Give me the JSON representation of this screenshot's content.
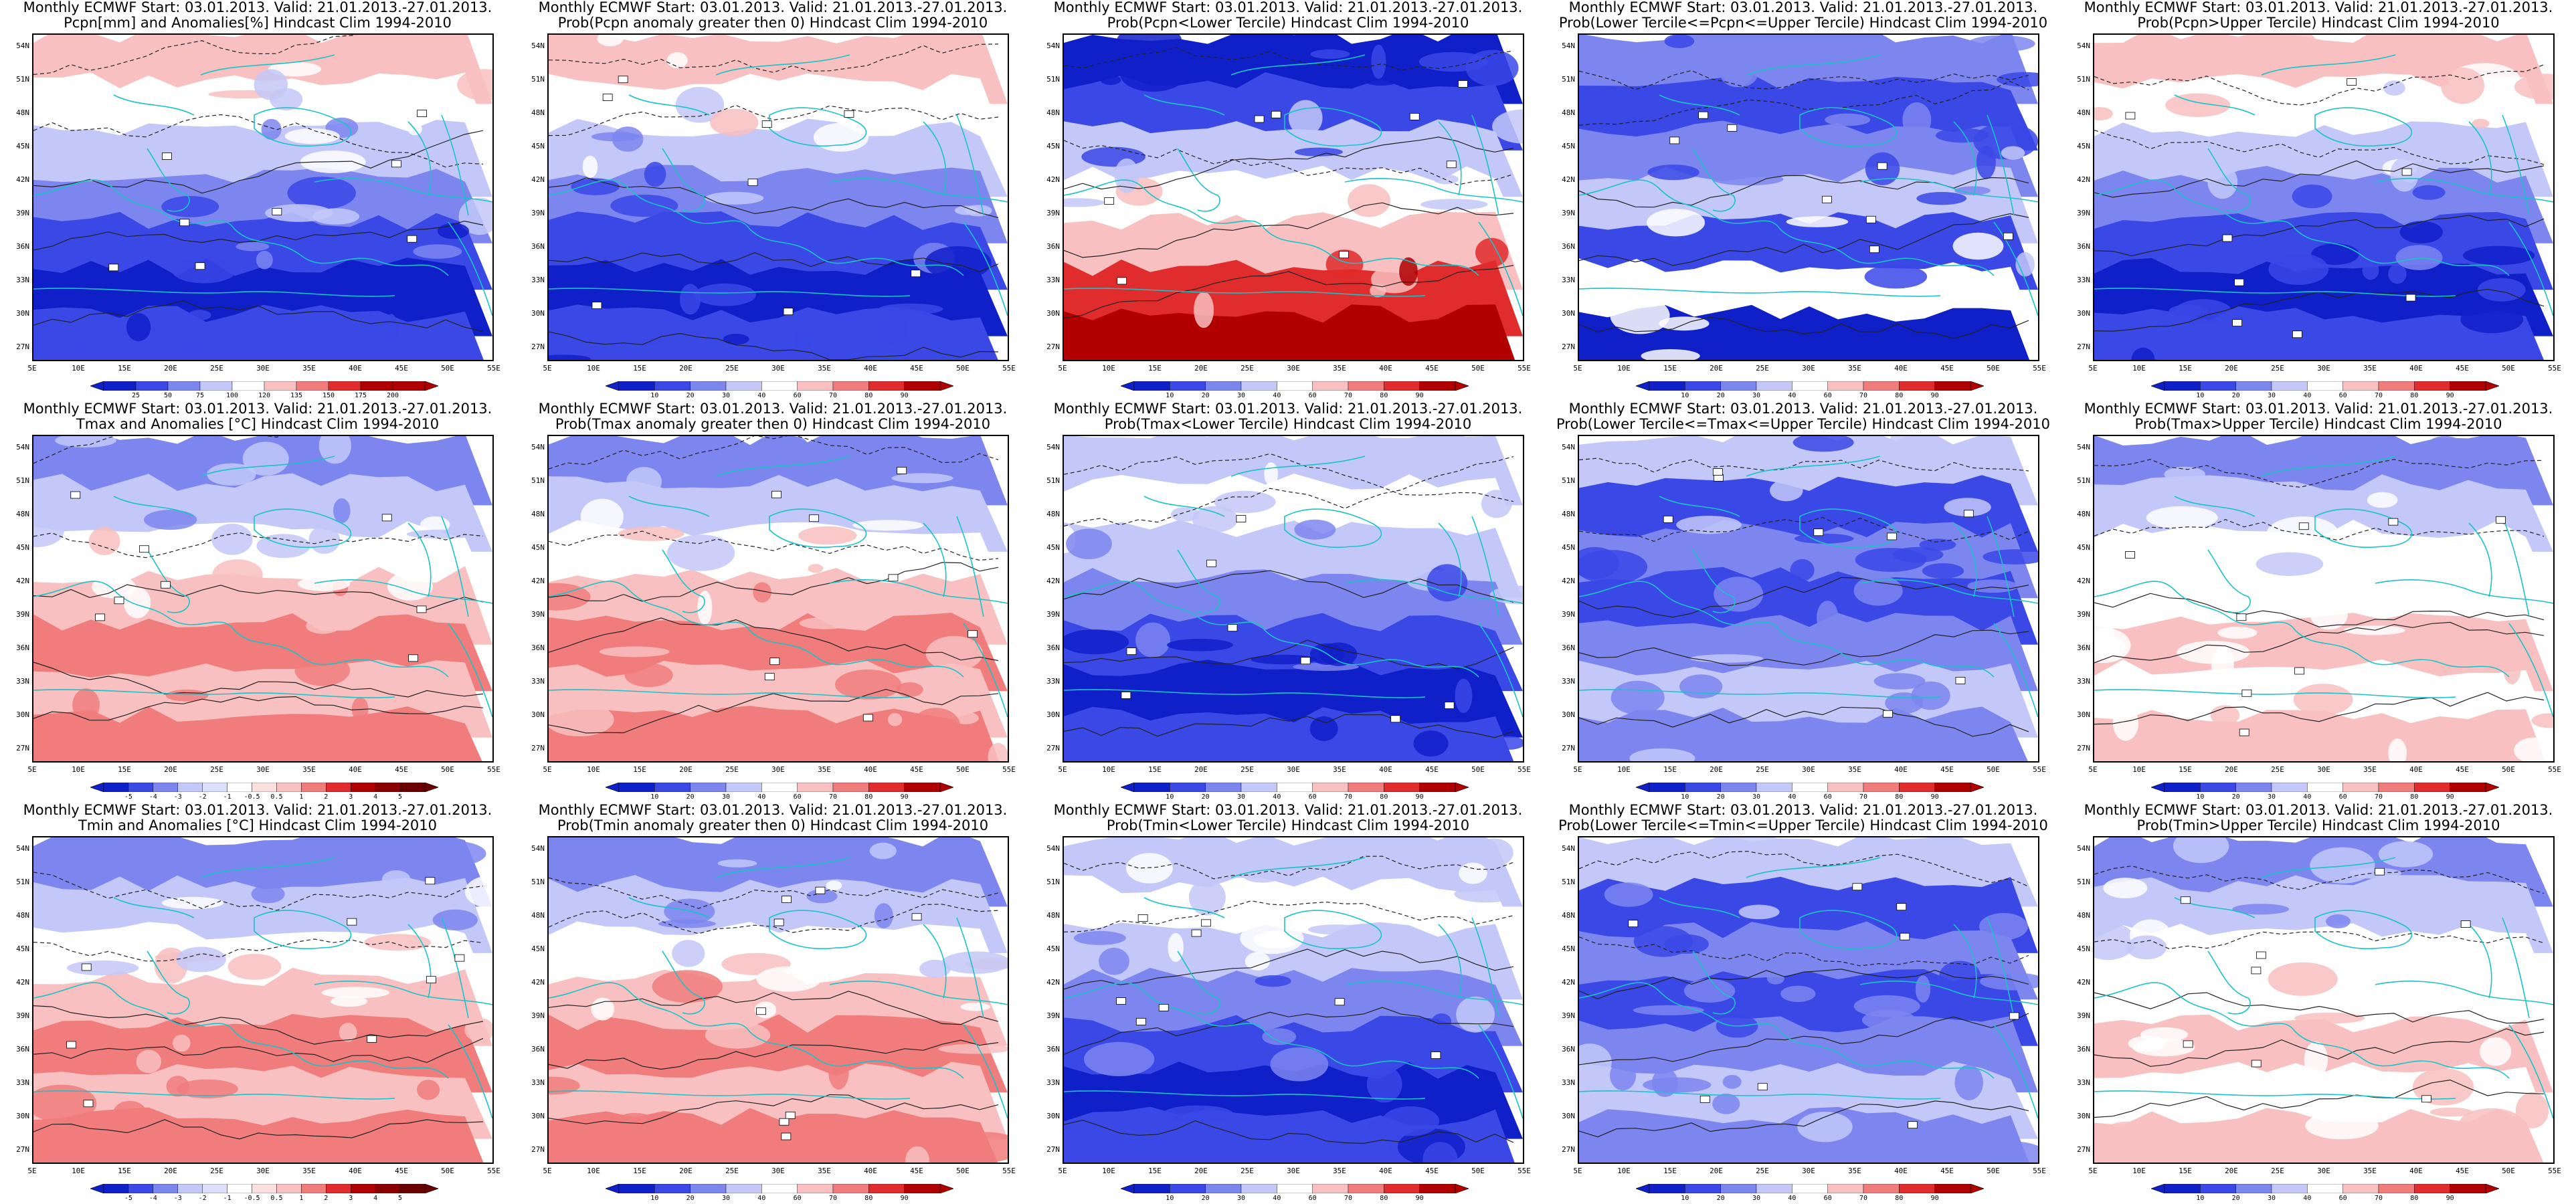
{
  "lat_labels": [
    "54N",
    "51N",
    "48N",
    "45N",
    "42N",
    "39N",
    "36N",
    "33N",
    "30N",
    "27N"
  ],
  "lon_labels": [
    "5E",
    "10E",
    "15E",
    "20E",
    "25E",
    "30E",
    "35E",
    "40E",
    "45E",
    "50E",
    "55E"
  ],
  "colorbars": {
    "pcpn_anom": [
      "25",
      "50",
      "75",
      "100",
      "120",
      "135",
      "150",
      "175",
      "200"
    ],
    "temp_anom": [
      "-5",
      "-4",
      "-3",
      "-2",
      "-1",
      "-0.5",
      "0.5",
      "1",
      "2",
      "3",
      "4",
      "5"
    ],
    "prob": [
      "10",
      "20",
      "30",
      "40",
      "60",
      "70",
      "80",
      "90"
    ]
  },
  "colors": {
    "deep_blue": "#1020c8",
    "blue": "#3a48e6",
    "mid_blue": "#7c86ee",
    "light_blue": "#c3c8f8",
    "white": "#ffffff",
    "light_red": "#f8c0c0",
    "mid_red": "#f07c7c",
    "red": "#e02c2c",
    "deep_red": "#b00000",
    "coast": "#19c3c8"
  },
  "panels": [
    {
      "title1": "Monthly ECMWF Start: 03.01.2013. Valid: 21.01.2013.-27.01.2013.",
      "title2": "Pcpn[mm] and Anomalies[%] Hindcast Clim 1994-2010",
      "cbar": "pcpn_anom",
      "scheme": "pcp_anom"
    },
    {
      "title1": "Monthly ECMWF Start: 03.01.2013. Valid: 21.01.2013.-27.01.2013.",
      "title2": "Prob(Pcpn anomaly greater then 0) Hindcast Clim 1994-2010",
      "cbar": "prob",
      "scheme": "pcp_anom"
    },
    {
      "title1": "Monthly ECMWF Start: 03.01.2013. Valid: 21.01.2013.-27.01.2013.",
      "title2": "Prob(Pcpn<Lower Tercile) Hindcast Clim 1994-2010",
      "cbar": "prob",
      "scheme": "pcp_low"
    },
    {
      "title1": "Monthly ECMWF Start: 03.01.2013. Valid: 21.01.2013.-27.01.2013.",
      "title2": "Prob(Lower Tercile<=Pcpn<=Upper Tercile) Hindcast Clim 1994-2010",
      "cbar": "prob",
      "scheme": "pcp_mid"
    },
    {
      "title1": "Monthly ECMWF Start: 03.01.2013. Valid: 21.01.2013.-27.01.2013.",
      "title2": "Prob(Pcpn>Upper Tercile) Hindcast Clim 1994-2010",
      "cbar": "prob",
      "scheme": "pcp_anom"
    },
    {
      "title1": "Monthly ECMWF Start: 03.01.2013. Valid: 21.01.2013.-27.01.2013.",
      "title2": "Tmax and Anomalies [°C] Hindcast Clim 1994-2010",
      "cbar": "temp_anom",
      "scheme": "t_warm"
    },
    {
      "title1": "Monthly ECMWF Start: 03.01.2013. Valid: 21.01.2013.-27.01.2013.",
      "title2": "Prob(Tmax anomaly greater then 0) Hindcast Clim 1994-2010",
      "cbar": "prob",
      "scheme": "t_warm"
    },
    {
      "title1": "Monthly ECMWF Start: 03.01.2013. Valid: 21.01.2013.-27.01.2013.",
      "title2": "Prob(Tmax<Lower Tercile) Hindcast Clim 1994-2010",
      "cbar": "prob",
      "scheme": "t_low"
    },
    {
      "title1": "Monthly ECMWF Start: 03.01.2013. Valid: 21.01.2013.-27.01.2013.",
      "title2": "Prob(Lower Tercile<=Tmax<=Upper Tercile) Hindcast Clim 1994-2010",
      "cbar": "prob",
      "scheme": "t_mid"
    },
    {
      "title1": "Monthly ECMWF Start: 03.01.2013. Valid: 21.01.2013.-27.01.2013.",
      "title2": "Prob(Tmax>Upper Tercile) Hindcast Clim 1994-2010",
      "cbar": "prob",
      "scheme": "t_up"
    },
    {
      "title1": "Monthly ECMWF Start: 03.01.2013. Valid: 21.01.2013.-27.01.2013.",
      "title2": "Tmin and Anomalies [°C] Hindcast Clim 1994-2010",
      "cbar": "temp_anom",
      "scheme": "t_warm"
    },
    {
      "title1": "Monthly ECMWF Start: 03.01.2013. Valid: 21.01.2013.-27.01.2013.",
      "title2": "Prob(Tmin anomaly greater then 0) Hindcast Clim 1994-2010",
      "cbar": "prob",
      "scheme": "t_warm"
    },
    {
      "title1": "Monthly ECMWF Start: 03.01.2013. Valid: 21.01.2013.-27.01.2013.",
      "title2": "Prob(Tmin<Lower Tercile) Hindcast Clim 1994-2010",
      "cbar": "prob",
      "scheme": "t_low"
    },
    {
      "title1": "Monthly ECMWF Start: 03.01.2013. Valid: 21.01.2013.-27.01.2013.",
      "title2": "Prob(Lower Tercile<=Tmin<=Upper Tercile) Hindcast Clim 1994-2010",
      "cbar": "prob",
      "scheme": "t_mid"
    },
    {
      "title1": "Monthly ECMWF Start: 03.01.2013. Valid: 21.01.2013.-27.01.2013.",
      "title2": "Prob(Tmin>Upper Tercile) Hindcast Clim 1994-2010",
      "cbar": "prob",
      "scheme": "t_up"
    }
  ]
}
